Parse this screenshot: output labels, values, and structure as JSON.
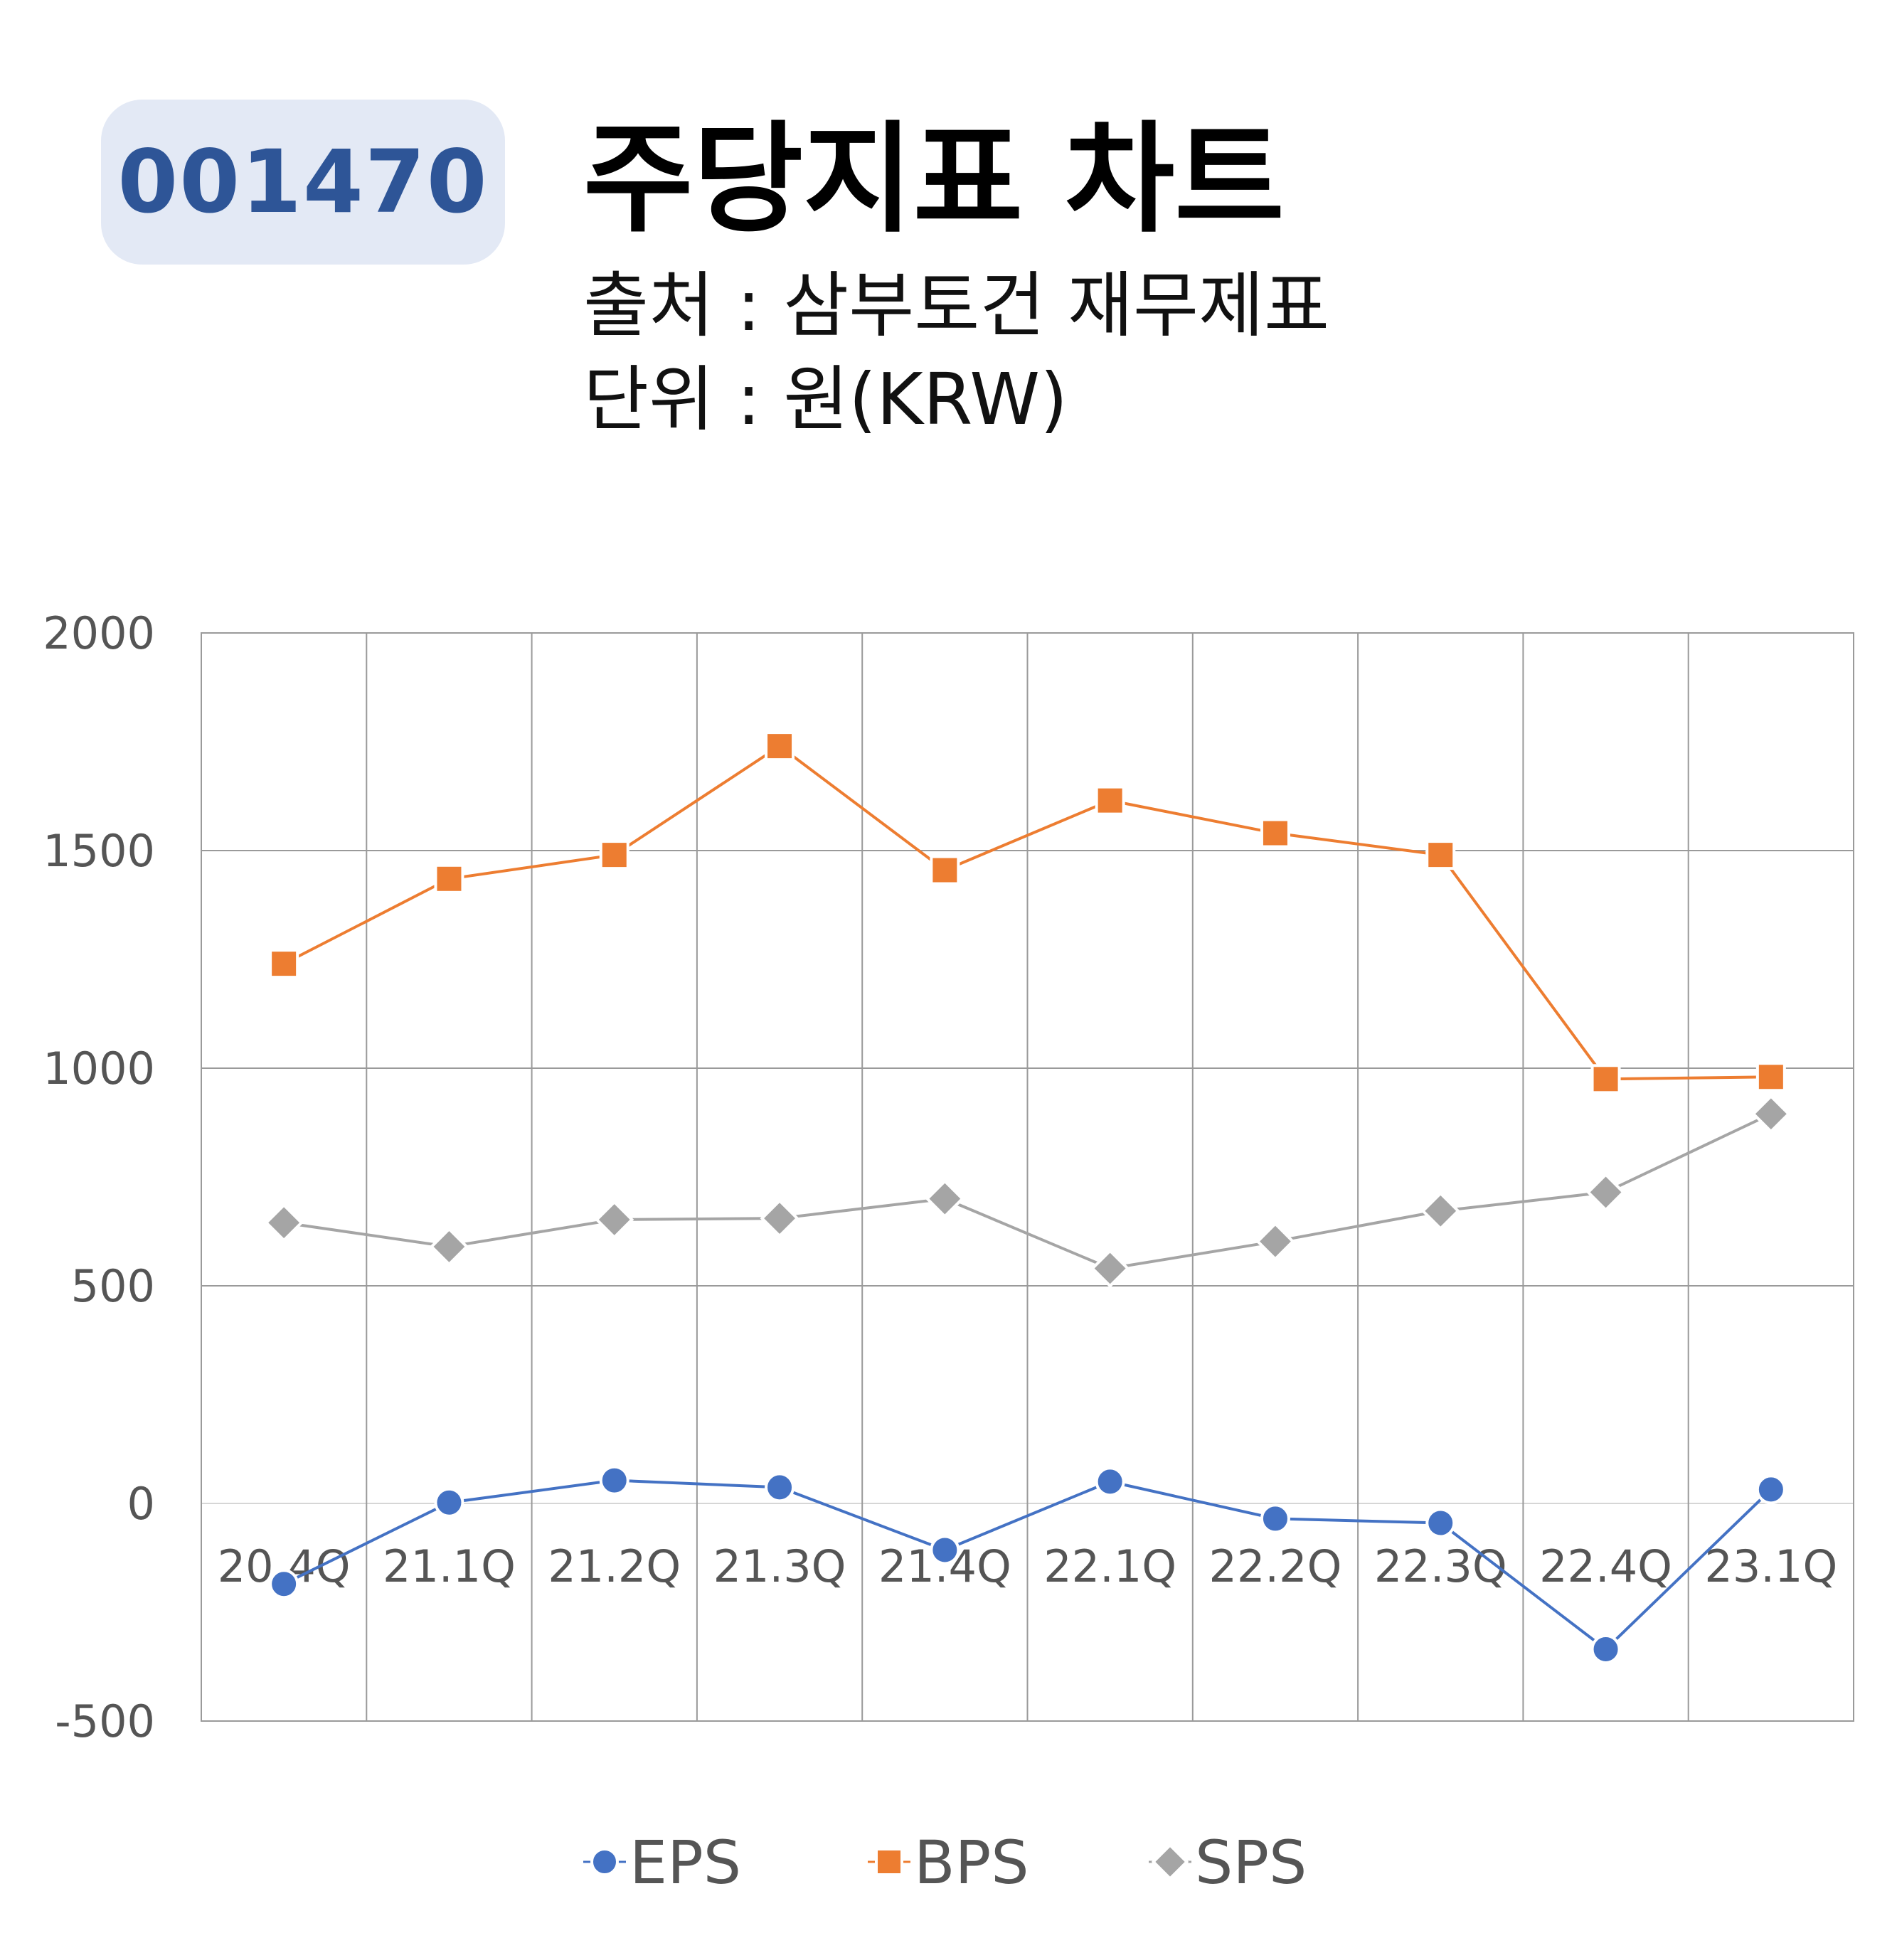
{
  "header": {
    "code": "001470",
    "title": "주당지표 차트",
    "source": "출처 : 삼부토건 재무제표",
    "unit": "단위 : 원(KRW)"
  },
  "colors": {
    "EPS": "#4472c4",
    "BPS": "#ed7d31",
    "SPS": "#a5a5a5",
    "grid": "#9a9a9a",
    "badge_bg": "#e3e9f5",
    "badge_text": "#2e5597"
  },
  "chart_data": {
    "type": "line",
    "categories": [
      "20.4Q",
      "21.1Q",
      "21.2Q",
      "21.3Q",
      "21.4Q",
      "22.1Q",
      "22.2Q",
      "22.3Q",
      "22.4Q",
      "23.1Q"
    ],
    "series": [
      {
        "name": "EPS",
        "marker": "circle",
        "values": [
          -185,
          2,
          53,
          37,
          -107,
          50,
          -35,
          -45,
          -335,
          32
        ]
      },
      {
        "name": "BPS",
        "marker": "square",
        "values": [
          1240,
          1435,
          1490,
          1740,
          1455,
          1615,
          1540,
          1490,
          975,
          980
        ]
      },
      {
        "name": "SPS",
        "marker": "diamond",
        "values": [
          645,
          590,
          652,
          655,
          700,
          540,
          602,
          672,
          715,
          895
        ]
      }
    ],
    "yticks": [
      "2000",
      "1500",
      "1000",
      "500",
      "0",
      "-500"
    ],
    "ylim": [
      -500,
      2000
    ],
    "grid": true,
    "legend": "bottom"
  }
}
